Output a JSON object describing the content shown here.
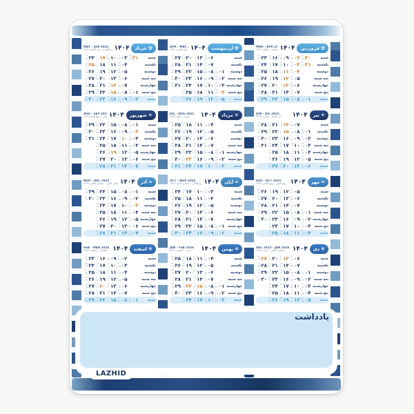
{
  "page": {
    "year_display": "۱۴۰۴",
    "notes_title": "یادداشت",
    "brand": "LAZHID"
  },
  "weekdays": [
    "شنبه",
    "یکشنبه",
    "دوشنبه",
    "سه شنبه",
    "چهارشنبه",
    "پنج شنبه",
    "جمعه"
  ],
  "digits": "۰۱۲۳۴۵۶۷۸۹",
  "icons": {
    "spring": "✿",
    "summer": "☀",
    "autumn": "❧",
    "winter": "❄"
  },
  "colors": {
    "date_navy": "#1e3a6e",
    "holiday_orange": "#e07d2a",
    "friday_blue": "#3f9ad2",
    "friday_strip": "#d9ecf8",
    "notes_box": "#cde6f6",
    "pill_spring": "#3d93cf",
    "pill_summer": "#1b3263",
    "pill_autumn": "#3678b4",
    "pill_winter": "#2a62a8"
  },
  "months": [
    {
      "name": "فروردین",
      "season": "spring",
      "icon_name": "flower-icon",
      "greg": "MAR - APR 2025",
      "hijri": "رمضان - شوال ۱۴۴۶",
      "rows": [
        [
          30,
          2,
          9,
          16,
          23
        ],
        [
          31,
          3,
          10,
          17,
          24
        ],
        [
          0,
          4,
          11,
          18,
          25
        ],
        [
          0,
          5,
          12,
          19,
          26
        ],
        [
          0,
          6,
          13,
          20,
          27
        ],
        [
          0,
          7,
          14,
          21,
          28
        ],
        [
          1,
          8,
          15,
          22,
          29
        ]
      ],
      "holidays": [
        1,
        2,
        3,
        4,
        11,
        12,
        13
      ],
      "gOffset": 20,
      "gMax": 31,
      "hOffset": 19,
      "hMax": 29
    },
    {
      "name": "اردیبهشت",
      "season": "spring",
      "icon_name": "flower-icon",
      "greg": "APR - MAY 2025",
      "hijri": "شوال - ذی القعده ۱۴۴۶",
      "rows": [
        [
          0,
          6,
          13,
          20,
          27
        ],
        [
          0,
          7,
          14,
          21,
          28
        ],
        [
          1,
          8,
          15,
          22,
          29
        ],
        [
          2,
          9,
          16,
          23,
          30
        ],
        [
          3,
          10,
          17,
          24,
          31
        ],
        [
          4,
          11,
          18,
          25,
          0
        ],
        [
          5,
          12,
          19,
          26,
          0
        ]
      ],
      "holidays": [
        4
      ],
      "gOffset": 20,
      "gMax": 30,
      "hOffset": 21,
      "hMax": 29
    },
    {
      "name": "خرداد",
      "season": "spring",
      "icon_name": "flower-icon",
      "greg": "MAY - JUN 2025",
      "hijri": "ذی القعده - ذی الحجه ۱۴۴۶",
      "rows": [
        [
          31,
          3,
          10,
          17,
          24
        ],
        [
          0,
          4,
          11,
          18,
          25
        ],
        [
          0,
          5,
          12,
          19,
          26
        ],
        [
          0,
          6,
          13,
          20,
          27
        ],
        [
          0,
          7,
          14,
          21,
          28
        ],
        [
          1,
          8,
          15,
          22,
          29
        ],
        [
          2,
          9,
          16,
          23,
          30
        ]
      ],
      "holidays": [
        14,
        15,
        17,
        25
      ],
      "gOffset": 21,
      "gMax": 31,
      "hOffset": 23,
      "hMax": 30
    },
    {
      "name": "تیر",
      "season": "summer",
      "icon_name": "sun-icon",
      "greg": "JUN - JUL 2025",
      "hijri": "ذی الحجه - محرم ۱۴۴۷",
      "rows": [
        [
          0,
          7,
          14,
          21,
          28
        ],
        [
          1,
          8,
          15,
          22,
          29
        ],
        [
          2,
          9,
          16,
          23,
          30
        ],
        [
          3,
          10,
          17,
          24,
          31
        ],
        [
          4,
          11,
          18,
          25,
          0
        ],
        [
          5,
          12,
          19,
          26,
          0
        ],
        [
          6,
          13,
          20,
          27,
          0
        ]
      ],
      "holidays": [
        14,
        15
      ],
      "gOffset": 21,
      "gMax": 30,
      "hOffset": 24,
      "hMax": 29
    },
    {
      "name": "مرداد",
      "season": "summer",
      "icon_name": "sun-icon",
      "greg": "JUL - AUG 2025",
      "hijri": "محرم - صفر ۱۴۴۷",
      "rows": [
        [
          0,
          4,
          11,
          18,
          25
        ],
        [
          0,
          5,
          12,
          19,
          26
        ],
        [
          0,
          6,
          13,
          20,
          27
        ],
        [
          0,
          7,
          14,
          21,
          28
        ],
        [
          1,
          8,
          15,
          22,
          29
        ],
        [
          2,
          9,
          16,
          23,
          30
        ],
        [
          3,
          10,
          17,
          24,
          31
        ]
      ],
      "holidays": [
        23,
        31
      ],
      "gOffset": 22,
      "gMax": 31,
      "hOffset": 26,
      "hMax": 29
    },
    {
      "name": "شهریور",
      "season": "summer",
      "icon_name": "sun-icon",
      "greg": "AUG - SEP 2025",
      "hijri": "صفر - ربیع الاول ۱۴۴۷",
      "rows": [
        [
          1,
          8,
          15,
          22,
          29
        ],
        [
          2,
          9,
          16,
          23,
          30
        ],
        [
          3,
          10,
          17,
          24,
          31
        ],
        [
          4,
          11,
          18,
          25,
          0
        ],
        [
          5,
          12,
          19,
          26,
          0
        ],
        [
          6,
          13,
          20,
          27,
          0
        ],
        [
          7,
          14,
          21,
          28,
          0
        ]
      ],
      "holidays": [
        2,
        10,
        19
      ],
      "gOffset": 22,
      "gMax": 31,
      "hOffset": 28,
      "hMax": 30
    },
    {
      "name": "مهر",
      "season": "autumn",
      "icon_name": "leaf-icon",
      "greg": "SEP - OCT 2025",
      "hijri": "ربیع الاول - ربیع الثانی ۱۴۴۷",
      "rows": [
        [
          0,
          5,
          12,
          19,
          26
        ],
        [
          0,
          6,
          13,
          20,
          27
        ],
        [
          0,
          7,
          14,
          21,
          28
        ],
        [
          1,
          8,
          15,
          22,
          29
        ],
        [
          2,
          9,
          16,
          23,
          30
        ],
        [
          3,
          10,
          17,
          24,
          0
        ],
        [
          4,
          11,
          18,
          25,
          0
        ]
      ],
      "holidays": [],
      "gOffset": 22,
      "gMax": 30,
      "hOffset": 29,
      "hMax": 30
    },
    {
      "name": "آبان",
      "season": "autumn",
      "icon_name": "leaf-icon",
      "greg": "OCT - NOV 2025",
      "hijri": "ربیع الثانی - جمادی الاول ۱۴۴۷",
      "rows": [
        [
          0,
          3,
          10,
          17,
          24
        ],
        [
          0,
          4,
          11,
          18,
          25
        ],
        [
          0,
          5,
          12,
          19,
          26
        ],
        [
          0,
          6,
          13,
          20,
          27
        ],
        [
          0,
          7,
          14,
          21,
          28
        ],
        [
          1,
          8,
          15,
          22,
          29
        ],
        [
          2,
          9,
          16,
          23,
          30
        ]
      ],
      "holidays": [],
      "gOffset": 22,
      "gMax": 31,
      "hOffset": 0,
      "hMax": 30
    },
    {
      "name": "آذر",
      "season": "autumn",
      "icon_name": "leaf-icon",
      "greg": "NOV - DEC 2025",
      "hijri": "جمادی الاول - جمادی الثانی ۱۴۴۷",
      "rows": [
        [
          1,
          8,
          15,
          22,
          29
        ],
        [
          2,
          9,
          16,
          23,
          30
        ],
        [
          3,
          10,
          17,
          24,
          0
        ],
        [
          4,
          11,
          18,
          25,
          0
        ],
        [
          5,
          12,
          19,
          26,
          0
        ],
        [
          6,
          13,
          20,
          27,
          0
        ],
        [
          7,
          14,
          21,
          28,
          0
        ]
      ],
      "holidays": [
        3
      ],
      "gOffset": 21,
      "gMax": 30,
      "hOffset": 0,
      "hMax": 30
    },
    {
      "name": "دی",
      "season": "winter",
      "icon_name": "snowflake-icon",
      "greg": "DEC 2025 - JAN 2026",
      "hijri": "جمادی الثانی - رجب ۱۴۴۷",
      "rows": [
        [
          0,
          6,
          13,
          20,
          27
        ],
        [
          0,
          7,
          14,
          21,
          28
        ],
        [
          1,
          8,
          15,
          22,
          29
        ],
        [
          2,
          9,
          16,
          23,
          30
        ],
        [
          3,
          10,
          17,
          24,
          0
        ],
        [
          4,
          11,
          18,
          25,
          0
        ],
        [
          5,
          12,
          19,
          26,
          0
        ]
      ],
      "holidays": [
        13,
        27
      ],
      "gOffset": 21,
      "gMax": 31,
      "hOffset": 0,
      "hMax": 30
    },
    {
      "name": "بهمن",
      "season": "winter",
      "icon_name": "snowflake-icon",
      "greg": "JAN - FEB 2026",
      "hijri": "رجب - شعبان ۱۴۴۷",
      "rows": [
        [
          0,
          4,
          11,
          18,
          25
        ],
        [
          0,
          5,
          12,
          19,
          26
        ],
        [
          0,
          6,
          13,
          20,
          27
        ],
        [
          0,
          7,
          14,
          21,
          28
        ],
        [
          1,
          8,
          15,
          22,
          29
        ],
        [
          2,
          9,
          16,
          23,
          30
        ],
        [
          3,
          10,
          17,
          24,
          0
        ]
      ],
      "holidays": [
        15,
        22
      ],
      "gOffset": 20,
      "gMax": 31,
      "hOffset": 0,
      "hMax": 29
    },
    {
      "name": "اسفند",
      "season": "winter",
      "icon_name": "snowflake-icon",
      "greg": "FEB - MAR 2026",
      "hijri": "شعبان - رمضان ۱۴۴۷",
      "rows": [
        [
          0,
          2,
          9,
          16,
          23
        ],
        [
          0,
          3,
          10,
          17,
          24
        ],
        [
          0,
          4,
          11,
          18,
          25
        ],
        [
          0,
          5,
          12,
          19,
          26
        ],
        [
          0,
          6,
          13,
          20,
          27
        ],
        [
          0,
          7,
          14,
          21,
          28
        ],
        [
          1,
          8,
          15,
          22,
          29
        ]
      ],
      "holidays": [
        20,
        29
      ],
      "gOffset": 19,
      "gMax": 28,
      "hOffset": 1,
      "hMax": 30
    }
  ]
}
